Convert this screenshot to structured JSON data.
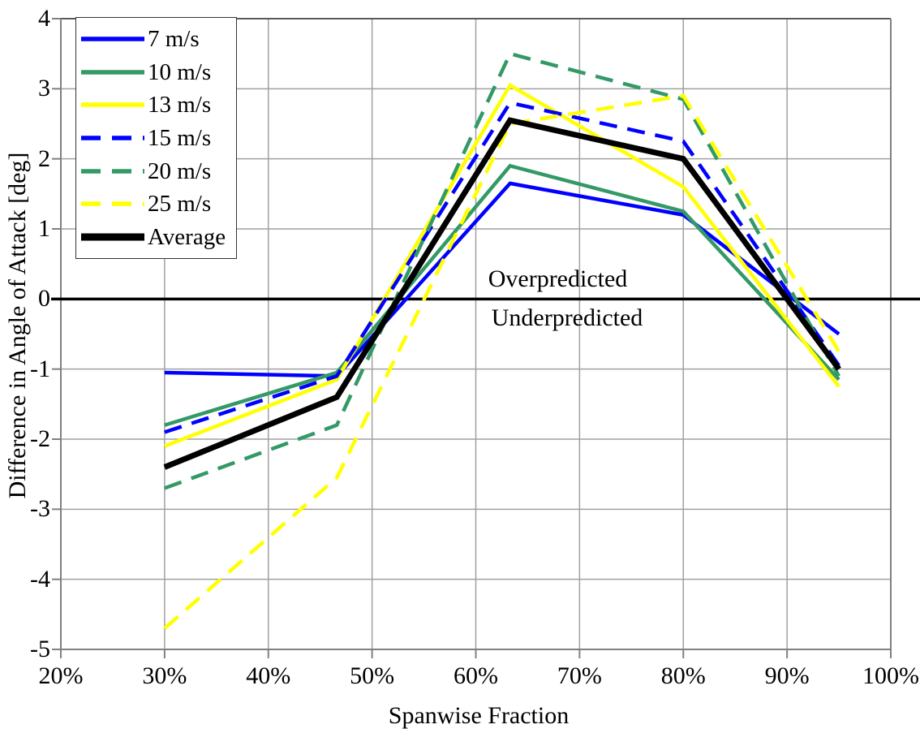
{
  "chart_data": {
    "type": "line",
    "title": "",
    "xlabel": "Spanwise Fraction",
    "ylabel": "Difference in Angle of Attack [deg]",
    "xlim": [
      20,
      100
    ],
    "ylim": [
      -5,
      4
    ],
    "x_tick_values": [
      20,
      30,
      40,
      50,
      60,
      70,
      80,
      90,
      100
    ],
    "x_tick_labels": [
      "20%",
      "30%",
      "40%",
      "50%",
      "60%",
      "70%",
      "80%",
      "90%",
      "100%"
    ],
    "y_tick_values": [
      -5,
      -4,
      -3,
      -2,
      -1,
      0,
      1,
      2,
      3,
      4
    ],
    "y_tick_labels": [
      "-5",
      "-4",
      "-3",
      "-2",
      "-1",
      "0",
      "1",
      "2",
      "3",
      "4"
    ],
    "grid": true,
    "legend_position": "top-left",
    "x": [
      30,
      46.6,
      63.3,
      80,
      95
    ],
    "series": [
      {
        "name": "7 m/s",
        "color": "#0000FF",
        "dash": "solid",
        "width": 4.5,
        "values": [
          -1.05,
          -1.1,
          1.65,
          1.2,
          -0.5
        ]
      },
      {
        "name": "10 m/s",
        "color": "#339966",
        "dash": "solid",
        "width": 4.5,
        "values": [
          -1.8,
          -1.05,
          1.9,
          1.25,
          -1.15
        ]
      },
      {
        "name": "13 m/s",
        "color": "#FFFF00",
        "dash": "solid",
        "width": 4.5,
        "values": [
          -2.1,
          -1.15,
          3.05,
          1.6,
          -1.25
        ]
      },
      {
        "name": "15 m/s",
        "color": "#0000FF",
        "dash": "dashed",
        "width": 4.5,
        "values": [
          -1.9,
          -1.1,
          2.8,
          2.25,
          -0.95
        ]
      },
      {
        "name": "20 m/s",
        "color": "#339966",
        "dash": "dashed",
        "width": 4.5,
        "values": [
          -2.7,
          -1.8,
          3.5,
          2.85,
          -1.1
        ]
      },
      {
        "name": "25 m/s",
        "color": "#FFFF00",
        "dash": "dashed",
        "width": 4.5,
        "values": [
          -4.7,
          -2.55,
          2.5,
          2.9,
          -0.75
        ]
      },
      {
        "name": "Average",
        "color": "#000000",
        "dash": "solid",
        "width": 7,
        "values": [
          -2.4,
          -1.4,
          2.55,
          2.0,
          -1.0
        ]
      }
    ],
    "annotations": [
      {
        "text": "Overpredicted",
        "x": 67.9,
        "y": 0.28
      },
      {
        "text": "Underpredicted",
        "x": 68.8,
        "y": -0.27
      }
    ],
    "zero_line": true,
    "colors": {
      "gridline": "#A0A0A0",
      "axis_frame": "#808080",
      "zero_line": "#000000",
      "background": "#FFFFFF"
    }
  }
}
